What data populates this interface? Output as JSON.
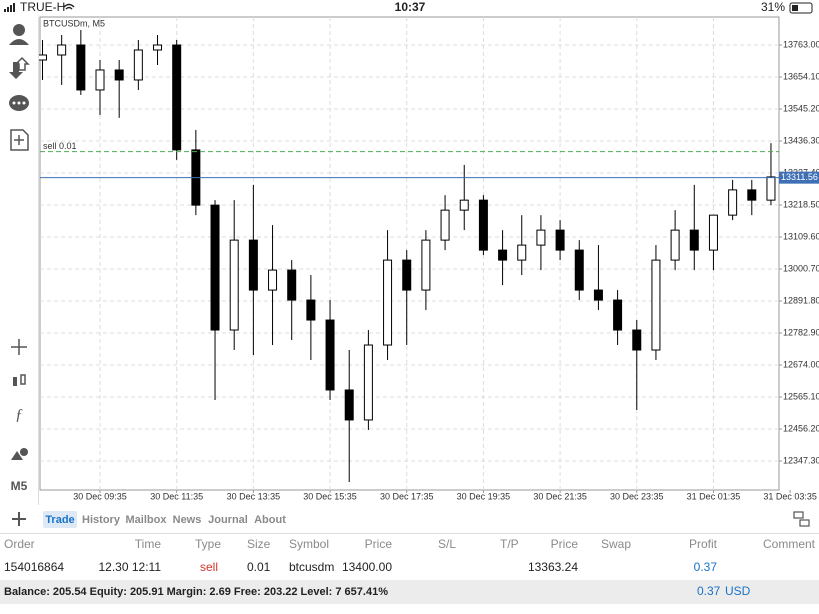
{
  "status_bar": {
    "carrier": "TRUE-H",
    "time": "10:37",
    "battery": "31%"
  },
  "chart_data": {
    "type": "candlestick",
    "title": "BTCUSDm, M5",
    "open": [
      13712,
      13729,
      13763,
      13610,
      13678,
      13644,
      13746,
      13763,
      13406,
      13218,
      12793,
      13099,
      12929,
      12997,
      12895,
      12827,
      12589,
      12487,
      12742,
      13031,
      12929,
      13099,
      13201,
      13235,
      13065,
      13031,
      13082,
      13133,
      13065,
      12929,
      12895,
      12793,
      12725,
      13031,
      13133,
      13065,
      13184,
      13270,
      13235
    ],
    "high": [
      13780,
      13797,
      13814,
      13712,
      13712,
      13780,
      13797,
      13780,
      13474,
      13235,
      13235,
      13287,
      13150,
      13031,
      12980,
      12895,
      12725,
      12793,
      13133,
      13065,
      13133,
      13252,
      13355,
      13252,
      13133,
      13184,
      13184,
      13167,
      13099,
      13082,
      12929,
      12827,
      13082,
      13201,
      13287,
      13184,
      13304,
      13304,
      13429
    ],
    "low": [
      13644,
      13627,
      13593,
      13525,
      13515,
      13610,
      13695,
      13372,
      13184,
      12555,
      12725,
      12708,
      12742,
      12759,
      12691,
      12555,
      12276,
      12453,
      12691,
      12742,
      12861,
      13065,
      13133,
      13048,
      12946,
      12980,
      12997,
      13031,
      12895,
      12861,
      12742,
      12521,
      12691,
      12997,
      12997,
      12997,
      13167,
      13184,
      13218
    ],
    "close": [
      13729,
      13763,
      13610,
      13678,
      13644,
      13746,
      13763,
      13406,
      13218,
      12793,
      13099,
      12929,
      12997,
      12895,
      12827,
      12589,
      12487,
      12742,
      13031,
      12929,
      13099,
      13201,
      13235,
      13065,
      13031,
      13082,
      13133,
      13065,
      12929,
      12895,
      12793,
      12725,
      13031,
      13133,
      13065,
      13184,
      13270,
      13235,
      13314
    ],
    "up_color": "#ffffff",
    "down_color": "#000000",
    "edge_color": "#000000",
    "ylim": [
      12248.6,
      13858.3
    ],
    "yticks": [
      {
        "value": 12347.3,
        "label": "12347.30"
      },
      {
        "value": 12456.2,
        "label": "12456.20"
      },
      {
        "value": 12565.1,
        "label": "12565.10"
      },
      {
        "value": 12674,
        "label": "12674.00"
      },
      {
        "value": 12782.9,
        "label": "12782.90"
      },
      {
        "value": 12891.8,
        "label": "12891.80"
      },
      {
        "value": 13000.7,
        "label": "13000.70"
      },
      {
        "value": 13109.6,
        "label": "13109.60"
      },
      {
        "value": 13218.5,
        "label": "13218.50"
      },
      {
        "value": 13327.4,
        "label": "13327.40"
      },
      {
        "value": 13436.3,
        "label": "13436.30"
      },
      {
        "value": 13545.2,
        "label": "13545.20"
      },
      {
        "value": 13654.1,
        "label": "13654.10"
      },
      {
        "value": 13763,
        "label": "13763.00"
      }
    ],
    "xticks": [
      {
        "value": 3,
        "label": "30 Dec 09:35"
      },
      {
        "value": 7,
        "label": "30 Dec 11:35"
      },
      {
        "value": 11,
        "label": "30 Dec 13:35"
      },
      {
        "value": 15,
        "label": "30 Dec 15:35"
      },
      {
        "value": 19,
        "label": "30 Dec 17:35"
      },
      {
        "value": 23,
        "label": "30 Dec 19:35"
      },
      {
        "value": 27,
        "label": "30 Dec 21:35"
      },
      {
        "value": 31,
        "label": "30 Dec 23:35"
      },
      {
        "value": 35,
        "label": "31 Dec 01:35"
      },
      {
        "value": 39,
        "label": "31 Dec 03:35"
      }
    ],
    "grid": true,
    "order_line": {
      "label": "sell 0.01",
      "value": 13400,
      "color": "#4caf50"
    },
    "bid_line": {
      "value": 13311.56,
      "color": "#3f6fb5"
    }
  },
  "toolbar": {
    "timeframe": "M5"
  },
  "tabs": [
    "Trade",
    "History",
    "Mailbox",
    "News",
    "Journal",
    "About"
  ],
  "table": {
    "headers": [
      "Order",
      "Time",
      "Type",
      "Size",
      "Symbol",
      "Price",
      "S/L",
      "T/P",
      "Price",
      "Swap",
      "Profit",
      "Comment"
    ],
    "row": {
      "order": "154016864",
      "time": "12.30 12:11",
      "type": "sell",
      "size": "0.01",
      "symbol": "btcusdm",
      "open_price": "13400.00",
      "current_price": "13363.24",
      "profit": "0.37"
    }
  },
  "summary": {
    "text": "Balance: 205.54 Equity: 205.91 Margin: 2.69 Free: 203.22 Level: 7 657.41%",
    "profit": "0.37",
    "currency": "USD"
  }
}
